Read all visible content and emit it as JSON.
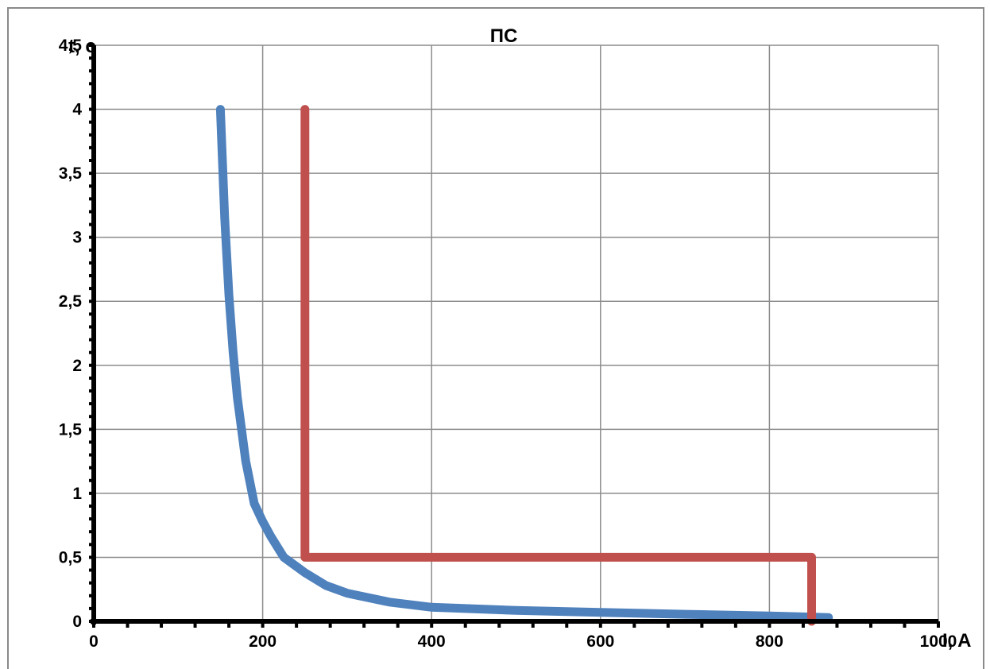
{
  "chart_data": {
    "type": "line",
    "title": "ПС",
    "xlabel": "I, A",
    "ylabel": "t, c",
    "xlim": [
      0,
      1000
    ],
    "ylim": [
      0,
      4.5
    ],
    "x_ticks": [
      "0",
      "200",
      "400",
      "600",
      "800",
      "1000"
    ],
    "y_ticks": [
      "0",
      "0,5",
      "1",
      "1,5",
      "2",
      "2,5",
      "3",
      "3,5",
      "4",
      "4,5"
    ],
    "grid": true,
    "legend": "none",
    "series": [
      {
        "color": "#4f81bd",
        "x": [
          150,
          155,
          160,
          165,
          170,
          180,
          190,
          200,
          210,
          225,
          250,
          275,
          300,
          350,
          400,
          500,
          600,
          700,
          800,
          870
        ],
        "y": [
          4.0,
          3.15,
          2.55,
          2.1,
          1.75,
          1.25,
          0.92,
          0.78,
          0.66,
          0.5,
          0.38,
          0.28,
          0.22,
          0.15,
          0.11,
          0.085,
          0.07,
          0.055,
          0.042,
          0.03
        ]
      },
      {
        "color": "#c0504d",
        "x": [
          250,
          250,
          850,
          850
        ],
        "y": [
          4.0,
          0.5,
          0.5,
          0.0
        ]
      }
    ]
  }
}
